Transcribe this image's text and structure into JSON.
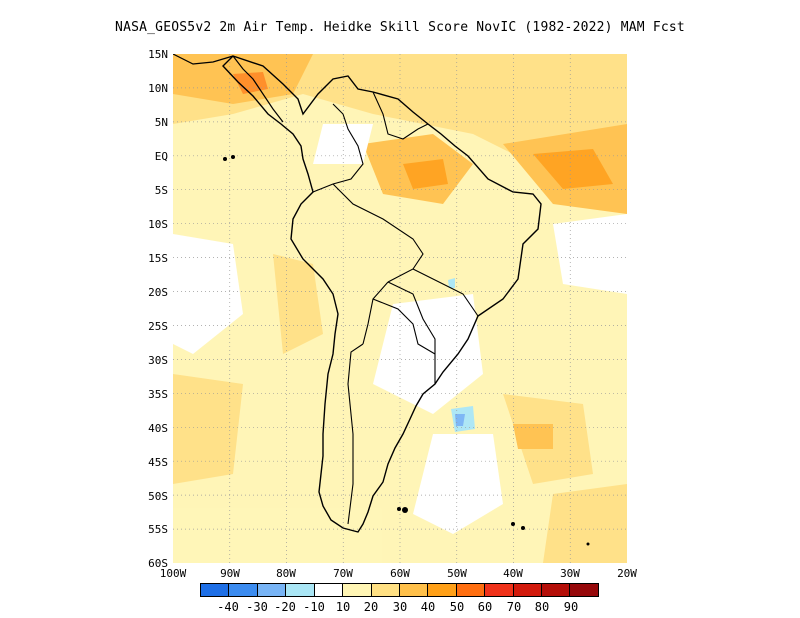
{
  "title": "NASA_GEOS5v2  2m Air Temp. Heidke Skill Score NovIC (1982-2022) MAM Fcst",
  "map": {
    "lat_labels": [
      "15N",
      "10N",
      "5N",
      "EQ",
      "5S",
      "10S",
      "15S",
      "20S",
      "25S",
      "30S",
      "35S",
      "40S",
      "45S",
      "50S",
      "55S",
      "60S"
    ],
    "lon_labels": [
      "100W",
      "90W",
      "80W",
      "70W",
      "60W",
      "50W",
      "40W",
      "30W",
      "20W"
    ],
    "lon_range": [
      -100,
      -20
    ],
    "lat_range": [
      -60,
      15
    ],
    "grid": "dotted"
  },
  "colorbar": {
    "labels": [
      "-40",
      "-30",
      "-20",
      "-10",
      "10",
      "20",
      "30",
      "40",
      "50",
      "60",
      "70",
      "80",
      "90"
    ],
    "colors": [
      "#1e6fe6",
      "#3c8cf0",
      "#78b4f5",
      "#aae6f5",
      "#ffffff",
      "#fff5b4",
      "#ffe083",
      "#ffc04a",
      "#ffa018",
      "#ff6e10",
      "#f0321a",
      "#d21a0c",
      "#b40e08",
      "#96080a"
    ]
  }
}
